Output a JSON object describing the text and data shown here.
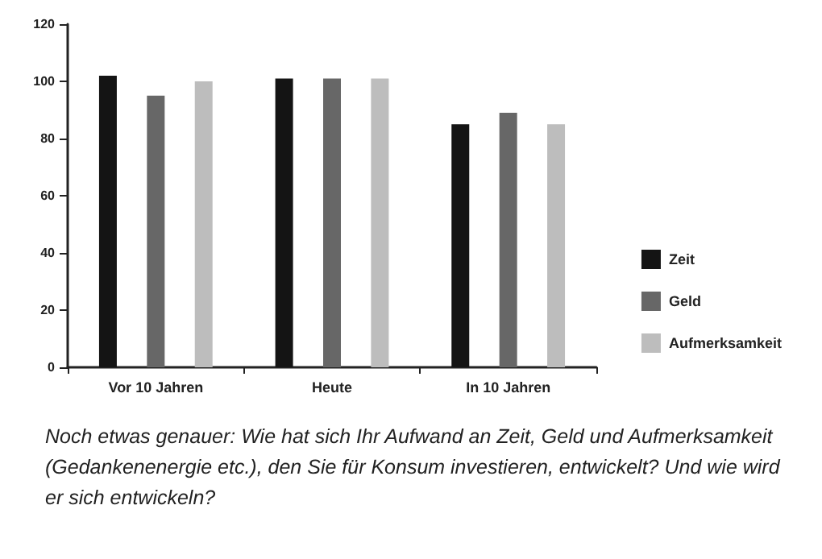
{
  "chart_data": {
    "type": "bar",
    "categories": [
      "Vor 10 Jahren",
      "Heute",
      "In 10 Jahren"
    ],
    "series": [
      {
        "name": "Zeit",
        "color": "#141414",
        "values": [
          102,
          101,
          85
        ]
      },
      {
        "name": "Geld",
        "color": "#676767",
        "values": [
          95,
          101,
          89
        ]
      },
      {
        "name": "Aufmerksamkeit",
        "color": "#bdbdbd",
        "values": [
          100,
          101,
          85
        ]
      }
    ],
    "ylim": [
      0,
      120
    ],
    "yticks": [
      0,
      20,
      40,
      60,
      80,
      100,
      120
    ],
    "grid": false,
    "legend": "right",
    "annotations": [
      "Noch etwas genauer: Wie hat sich Ihr Aufwand an Zeit, Geld und Aufmerksamkeit (Gedankenenergie etc.), den Sie für Konsum investieren, entwickelt? Und wie wird er sich entwickeln?"
    ]
  }
}
